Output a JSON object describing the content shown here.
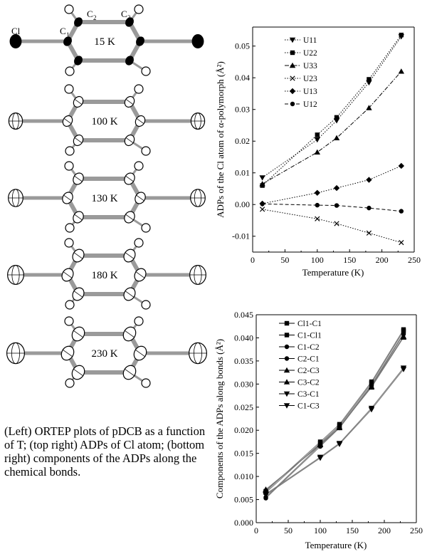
{
  "ortep": {
    "atom_labels": {
      "cl": "Cl",
      "c1": "C",
      "c1_sub": "1",
      "c2": "C",
      "c2_sub": "2",
      "c3": "C",
      "c3_sub": "3"
    },
    "temperatures": [
      "15 K",
      "100 K",
      "130 K",
      "180 K",
      "230 K"
    ]
  },
  "caption": "(Left) ORTEP plots of pDCB as a function of T; (top right) ADPs of Cl atom; (bottom right) components of the ADPs along the chemical bonds.",
  "chart_data": [
    {
      "type": "line",
      "title": "",
      "xlabel": "Temperature (K)",
      "ylabel": "ADPs of the Cl atom of α-polymorph (Å²)",
      "xlim": [
        0,
        250
      ],
      "ylim": [
        -0.015,
        0.056
      ],
      "xticks": [
        "0",
        "50",
        "100",
        "150",
        "200",
        "250"
      ],
      "yticks": [
        "-0.01",
        "0.00",
        "0.01",
        "0.02",
        "0.03",
        "0.04",
        "0.05"
      ],
      "legend_position": "top-left",
      "x": [
        15,
        100,
        130,
        180,
        230
      ],
      "series": [
        {
          "name": "U11",
          "marker": "triangle-down",
          "dash": "dot",
          "values": [
            0.0085,
            0.0205,
            0.0265,
            0.0385,
            0.053
          ]
        },
        {
          "name": "U22",
          "marker": "square",
          "dash": "dot",
          "values": [
            0.006,
            0.022,
            0.0275,
            0.0395,
            0.0535
          ]
        },
        {
          "name": "U33",
          "marker": "triangle-up",
          "dash": "dashdot",
          "values": [
            0.0065,
            0.0165,
            0.021,
            0.0305,
            0.042
          ]
        },
        {
          "name": "U23",
          "marker": "x",
          "dash": "dot",
          "values": [
            -0.0015,
            -0.0045,
            -0.006,
            -0.009,
            -0.012
          ]
        },
        {
          "name": "U13",
          "marker": "diamond",
          "dash": "dot",
          "values": [
            0.0003,
            0.0037,
            0.0052,
            0.0078,
            0.0122
          ]
        },
        {
          "name": "U12",
          "marker": "circle",
          "dash": "dash",
          "values": [
            0.0002,
            -0.0002,
            -0.0003,
            -0.0011,
            -0.0021
          ]
        }
      ]
    },
    {
      "type": "line",
      "title": "",
      "xlabel": "Temperature (K)",
      "ylabel": "Components of the ADPs along bonds (Å²)",
      "xlim": [
        0,
        250
      ],
      "ylim": [
        0,
        0.045
      ],
      "xticks": [
        "0",
        "50",
        "100",
        "150",
        "200",
        "250"
      ],
      "yticks": [
        "0.000",
        "0.005",
        "0.010",
        "0.015",
        "0.020",
        "0.025",
        "0.030",
        "0.035",
        "0.040",
        "0.045"
      ],
      "legend_position": "top-left",
      "x": [
        15,
        100,
        130,
        180,
        230
      ],
      "series": [
        {
          "name": "Cl1-C1",
          "marker": "square",
          "values": [
            0.0065,
            0.0172,
            0.021,
            0.0302,
            0.0415
          ]
        },
        {
          "name": "C1-Cl1",
          "marker": "square",
          "values": [
            0.0068,
            0.0175,
            0.0213,
            0.0305,
            0.0418
          ]
        },
        {
          "name": "C1-C2",
          "marker": "circle",
          "values": [
            0.0055,
            0.0168,
            0.0207,
            0.0298,
            0.041
          ]
        },
        {
          "name": "C2-C1",
          "marker": "circle",
          "values": [
            0.0053,
            0.0165,
            0.0205,
            0.0296,
            0.0408
          ]
        },
        {
          "name": "C2-C3",
          "marker": "triangle-up",
          "values": [
            0.0072,
            0.0168,
            0.0205,
            0.0295,
            0.0403
          ]
        },
        {
          "name": "C3-C2",
          "marker": "triangle-up",
          "values": [
            0.007,
            0.017,
            0.0207,
            0.0293,
            0.0401
          ]
        },
        {
          "name": "C3-C1",
          "marker": "triangle-down",
          "values": [
            0.006,
            0.014,
            0.017,
            0.0245,
            0.0332
          ]
        },
        {
          "name": "C1-C3",
          "marker": "triangle-down",
          "values": [
            0.0062,
            0.0142,
            0.0172,
            0.0248,
            0.0335
          ]
        }
      ]
    }
  ]
}
